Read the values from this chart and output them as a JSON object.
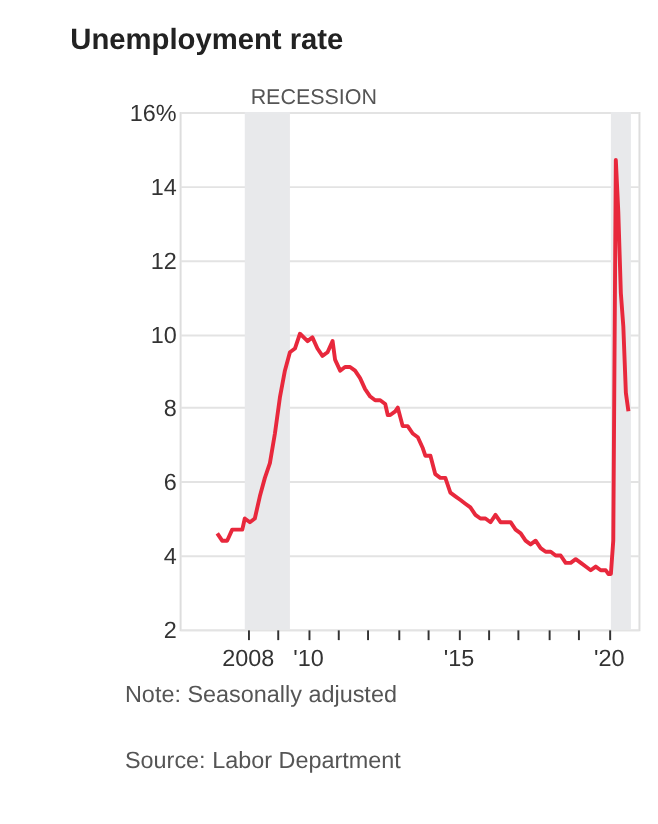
{
  "chart_data": {
    "type": "line",
    "title": "Unemployment rate",
    "x": [
      "2007-01",
      "2007-03",
      "2007-05",
      "2007-07",
      "2007-09",
      "2007-11",
      "2007-12",
      "2008-02",
      "2008-04",
      "2008-06",
      "2008-08",
      "2008-10",
      "2008-12",
      "2009-02",
      "2009-04",
      "2009-06",
      "2009-08",
      "2009-10",
      "2010-01",
      "2010-03",
      "2010-05",
      "2010-07",
      "2010-09",
      "2010-11",
      "2010-12",
      "2011-02",
      "2011-04",
      "2011-06",
      "2011-08",
      "2011-10",
      "2011-12",
      "2012-02",
      "2012-04",
      "2012-06",
      "2012-08",
      "2012-09",
      "2012-10",
      "2012-12",
      "2013-01",
      "2013-03",
      "2013-05",
      "2013-07",
      "2013-09",
      "2013-11",
      "2013-12",
      "2014-02",
      "2014-04",
      "2014-06",
      "2014-08",
      "2014-10",
      "2014-12",
      "2015-02",
      "2015-04",
      "2015-06",
      "2015-08",
      "2015-10",
      "2015-12",
      "2016-02",
      "2016-04",
      "2016-06",
      "2016-08",
      "2016-10",
      "2016-12",
      "2017-02",
      "2017-04",
      "2017-06",
      "2017-08",
      "2017-10",
      "2017-12",
      "2018-02",
      "2018-04",
      "2018-06",
      "2018-08",
      "2018-10",
      "2018-12",
      "2019-02",
      "2019-04",
      "2019-06",
      "2019-08",
      "2019-10",
      "2019-12",
      "2020-01",
      "2020-02",
      "2020-03",
      "2020-04",
      "2020-05",
      "2020-06",
      "2020-07",
      "2020-08",
      "2020-09"
    ],
    "series": [
      {
        "color": "#e8283c",
        "values": [
          4.6,
          4.4,
          4.4,
          4.7,
          4.7,
          4.7,
          5.0,
          4.9,
          5.0,
          5.6,
          6.1,
          6.5,
          7.3,
          8.3,
          9.0,
          9.5,
          9.6,
          10.0,
          9.8,
          9.9,
          9.6,
          9.4,
          9.5,
          9.8,
          9.3,
          9.0,
          9.1,
          9.1,
          9.0,
          8.8,
          8.5,
          8.3,
          8.2,
          8.2,
          8.1,
          7.8,
          7.8,
          7.9,
          8.0,
          7.5,
          7.5,
          7.3,
          7.2,
          6.9,
          6.7,
          6.7,
          6.2,
          6.1,
          6.1,
          5.7,
          5.6,
          5.5,
          5.4,
          5.3,
          5.1,
          5.0,
          5.0,
          4.9,
          5.1,
          4.9,
          4.9,
          4.9,
          4.7,
          4.6,
          4.4,
          4.3,
          4.4,
          4.2,
          4.1,
          4.1,
          4.0,
          4.0,
          3.8,
          3.8,
          3.9,
          3.8,
          3.7,
          3.6,
          3.7,
          3.6,
          3.6,
          3.5,
          3.5,
          4.4,
          14.7,
          13.3,
          11.1,
          10.2,
          8.4,
          7.9
        ]
      }
    ],
    "xlim": [
      "2005-10",
      "2021-01"
    ],
    "xticks": [
      {
        "value": "2008",
        "label": "2008"
      },
      {
        "value": "2009",
        "label": null
      },
      {
        "value": "2010",
        "label": "'10"
      },
      {
        "value": "2011",
        "label": null
      },
      {
        "value": "2012",
        "label": null
      },
      {
        "value": "2013",
        "label": null
      },
      {
        "value": "2014",
        "label": null
      },
      {
        "value": "2015",
        "label": "'15"
      },
      {
        "value": "2016",
        "label": null
      },
      {
        "value": "2017",
        "label": null
      },
      {
        "value": "2018",
        "label": null
      },
      {
        "value": "2019",
        "label": null
      },
      {
        "value": "2020",
        "label": "'20"
      }
    ],
    "ylim": [
      2,
      16
    ],
    "yticks": [
      2,
      4,
      6,
      8,
      10,
      12,
      14,
      {
        "value": 16,
        "label": "16%"
      }
    ],
    "grid": "y",
    "line_style": "solid",
    "bands": [
      {
        "axis": "x",
        "from": "2007-12",
        "to": "2009-06",
        "label": "RECESSION",
        "color": "#e8e9eb"
      },
      {
        "axis": "x",
        "from": "2020-02",
        "to": "2020-10",
        "label": null,
        "color": "#e8e9eb"
      }
    ],
    "annotations": [
      "Note: Seasonally adjusted",
      "Source: Labor Department"
    ]
  }
}
